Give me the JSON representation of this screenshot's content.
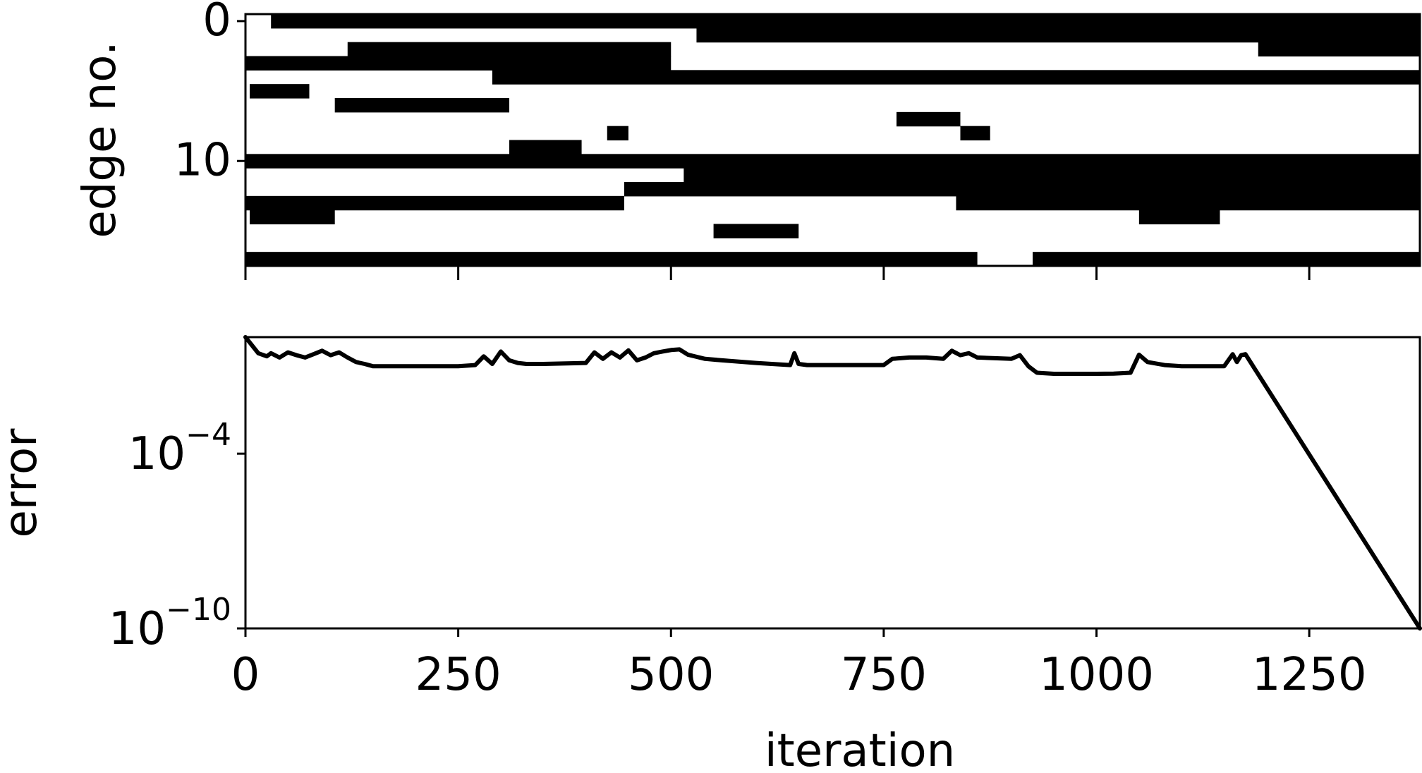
{
  "chart_data": [
    {
      "type": "heatmap",
      "ylabel": "edge no.",
      "xlabel": "",
      "ytick_labels": [
        "0",
        "10"
      ],
      "ytick_values": [
        0,
        10
      ],
      "xlim": [
        0,
        1380
      ],
      "ylim": [
        17.5,
        -0.5
      ],
      "n_rows": 18,
      "colormap": "white-to-black (0 = white, 1 = black)",
      "rows": [
        {
          "edge": 0,
          "black_intervals": [
            [
              30,
              1380
            ]
          ]
        },
        {
          "edge": 1,
          "black_intervals": [
            [
              530,
              1380
            ]
          ]
        },
        {
          "edge": 2,
          "black_intervals": [
            [
              120,
              500
            ],
            [
              1190,
              1380
            ]
          ]
        },
        {
          "edge": 3,
          "black_intervals": [
            [
              0,
              500
            ]
          ]
        },
        {
          "edge": 4,
          "black_intervals": [
            [
              290,
              1380
            ]
          ]
        },
        {
          "edge": 5,
          "black_intervals": [
            [
              5,
              75
            ]
          ]
        },
        {
          "edge": 6,
          "black_intervals": [
            [
              105,
              310
            ]
          ]
        },
        {
          "edge": 7,
          "black_intervals": [
            [
              765,
              840
            ]
          ]
        },
        {
          "edge": 8,
          "black_intervals": [
            [
              425,
              450
            ],
            [
              840,
              875
            ]
          ]
        },
        {
          "edge": 9,
          "black_intervals": [
            [
              310,
              395
            ]
          ]
        },
        {
          "edge": 10,
          "black_intervals": [
            [
              0,
              1380
            ]
          ]
        },
        {
          "edge": 11,
          "black_intervals": [
            [
              515,
              1380
            ]
          ]
        },
        {
          "edge": 12,
          "black_intervals": [
            [
              445,
              1380
            ]
          ]
        },
        {
          "edge": 13,
          "black_intervals": [
            [
              0,
              445
            ],
            [
              835,
              1380
            ]
          ]
        },
        {
          "edge": 14,
          "black_intervals": [
            [
              5,
              105
            ],
            [
              1050,
              1145
            ]
          ]
        },
        {
          "edge": 15,
          "black_intervals": [
            [
              550,
              650
            ]
          ]
        },
        {
          "edge": 16,
          "black_intervals": []
        },
        {
          "edge": 17,
          "black_intervals": [
            [
              0,
              860
            ],
            [
              925,
              1380
            ]
          ]
        }
      ]
    },
    {
      "type": "line",
      "xlabel": "iteration",
      "ylabel": "error",
      "yscale": "log",
      "xlim": [
        0,
        1380
      ],
      "ylim": [
        1e-10,
        1.0
      ],
      "xtick_labels": [
        "0",
        "250",
        "500",
        "750",
        "1000",
        "1250"
      ],
      "xtick_values": [
        0,
        250,
        500,
        750,
        1000,
        1250
      ],
      "ytick_labels": [
        {
          "base": "10",
          "exp": "−4"
        },
        {
          "base": "10",
          "exp": "−10"
        }
      ],
      "ytick_values": [
        0.0001,
        1e-10
      ],
      "grid": false,
      "series": [
        {
          "color": "#000000",
          "x": [
            0,
            15,
            25,
            30,
            40,
            50,
            60,
            70,
            80,
            90,
            100,
            110,
            120,
            130,
            140,
            150,
            200,
            250,
            270,
            280,
            290,
            300,
            310,
            320,
            330,
            350,
            400,
            410,
            420,
            430,
            440,
            450,
            460,
            470,
            480,
            490,
            500,
            510,
            520,
            540,
            560,
            600,
            640,
            645,
            650,
            660,
            700,
            750,
            760,
            780,
            800,
            820,
            830,
            840,
            850,
            860,
            900,
            910,
            920,
            930,
            950,
            1000,
            1020,
            1040,
            1050,
            1060,
            1080,
            1100,
            1150,
            1160,
            1165,
            1170,
            1175,
            1380
          ],
          "y": [
            1.0,
            0.28,
            0.22,
            0.28,
            0.2,
            0.3,
            0.24,
            0.2,
            0.26,
            0.34,
            0.24,
            0.3,
            0.2,
            0.14,
            0.12,
            0.1,
            0.1,
            0.1,
            0.11,
            0.22,
            0.12,
            0.32,
            0.16,
            0.13,
            0.12,
            0.12,
            0.13,
            0.3,
            0.18,
            0.3,
            0.2,
            0.35,
            0.16,
            0.2,
            0.28,
            0.32,
            0.36,
            0.38,
            0.25,
            0.18,
            0.16,
            0.13,
            0.11,
            0.28,
            0.12,
            0.11,
            0.11,
            0.11,
            0.18,
            0.2,
            0.2,
            0.18,
            0.34,
            0.24,
            0.28,
            0.2,
            0.18,
            0.24,
            0.1,
            0.06,
            0.055,
            0.055,
            0.056,
            0.06,
            0.25,
            0.14,
            0.11,
            0.1,
            0.1,
            0.26,
            0.14,
            0.24,
            0.26,
            1e-10
          ]
        }
      ]
    }
  ]
}
